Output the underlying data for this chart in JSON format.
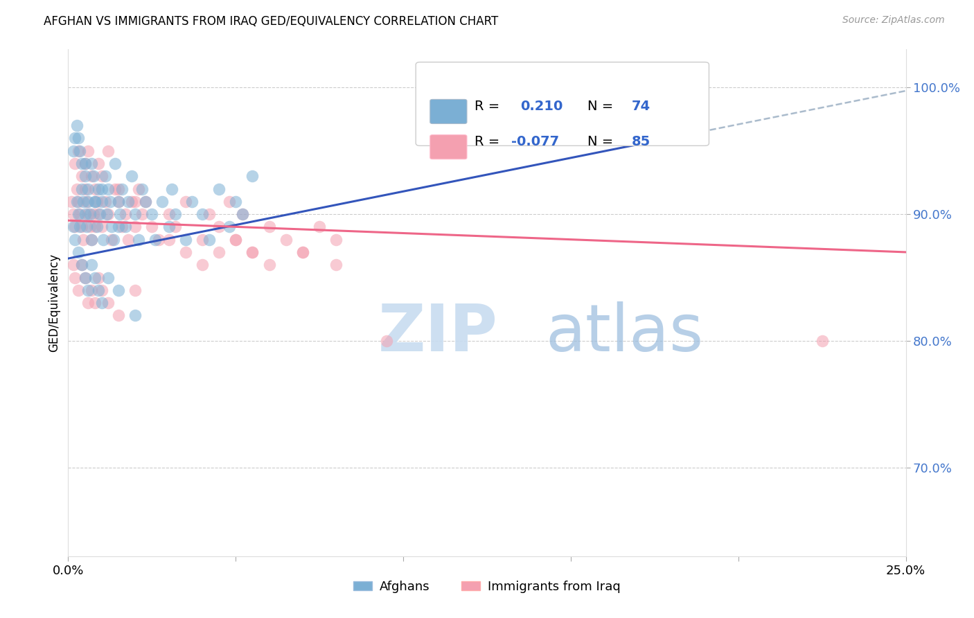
{
  "title": "AFGHAN VS IMMIGRANTS FROM IRAQ GED/EQUIVALENCY CORRELATION CHART",
  "source": "Source: ZipAtlas.com",
  "ylabel": "GED/Equivalency",
  "xmin": 0.0,
  "xmax": 25.0,
  "ymin": 63.0,
  "ymax": 103.0,
  "yticks": [
    70.0,
    80.0,
    90.0,
    100.0
  ],
  "blue_color": "#7BAFD4",
  "pink_color": "#F4A0B0",
  "trend_blue": "#3355BB",
  "trend_pink": "#EE6688",
  "trend_dash_color": "#AABBCC",
  "background_color": "#FFFFFF",
  "blue_scatter_x": [
    0.15,
    0.2,
    0.25,
    0.3,
    0.35,
    0.4,
    0.45,
    0.5,
    0.5,
    0.55,
    0.6,
    0.65,
    0.7,
    0.75,
    0.8,
    0.85,
    0.9,
    0.95,
    1.0,
    1.05,
    1.1,
    1.15,
    1.2,
    1.25,
    1.3,
    1.35,
    1.4,
    1.5,
    1.55,
    1.6,
    1.7,
    1.8,
    1.9,
    2.0,
    2.1,
    2.2,
    2.3,
    2.5,
    2.6,
    2.8,
    3.0,
    3.1,
    3.2,
    3.5,
    3.7,
    4.0,
    4.2,
    4.5,
    4.8,
    5.0,
    5.2,
    5.5,
    0.3,
    0.4,
    0.5,
    0.6,
    0.7,
    0.8,
    0.9,
    1.0,
    1.2,
    1.5,
    2.0,
    0.15,
    0.2,
    0.25,
    0.3,
    0.35,
    0.4,
    0.5,
    0.6,
    0.7,
    0.8,
    1.0,
    1.5
  ],
  "blue_scatter_y": [
    89,
    88,
    91,
    90,
    89,
    92,
    91,
    90,
    94,
    89,
    91,
    90,
    88,
    93,
    91,
    89,
    92,
    90,
    91,
    88,
    93,
    90,
    92,
    91,
    89,
    88,
    94,
    91,
    90,
    92,
    89,
    91,
    93,
    90,
    88,
    92,
    91,
    90,
    88,
    91,
    89,
    92,
    90,
    88,
    91,
    90,
    88,
    92,
    89,
    91,
    90,
    93,
    87,
    86,
    85,
    84,
    86,
    85,
    84,
    83,
    85,
    84,
    82,
    95,
    96,
    97,
    96,
    95,
    94,
    93,
    92,
    94,
    91,
    92,
    89
  ],
  "pink_scatter_x": [
    0.1,
    0.15,
    0.2,
    0.25,
    0.3,
    0.35,
    0.4,
    0.45,
    0.5,
    0.55,
    0.6,
    0.65,
    0.7,
    0.75,
    0.8,
    0.85,
    0.9,
    1.0,
    1.1,
    1.2,
    1.3,
    1.4,
    1.5,
    1.6,
    1.7,
    1.8,
    1.9,
    2.0,
    2.1,
    2.2,
    2.3,
    2.5,
    2.7,
    3.0,
    3.2,
    3.5,
    4.0,
    4.2,
    4.5,
    4.8,
    5.0,
    5.2,
    5.5,
    6.0,
    6.5,
    7.0,
    7.5,
    8.0,
    0.15,
    0.2,
    0.3,
    0.4,
    0.5,
    0.6,
    0.7,
    0.8,
    0.9,
    1.0,
    1.2,
    1.5,
    2.0,
    0.2,
    0.3,
    0.4,
    0.5,
    0.6,
    0.7,
    0.8,
    0.9,
    1.0,
    1.2,
    1.5,
    2.0,
    3.0,
    3.5,
    4.0,
    4.5,
    5.0,
    5.5,
    6.0,
    7.0,
    8.0,
    9.5,
    22.5
  ],
  "pink_scatter_y": [
    91,
    90,
    89,
    92,
    91,
    90,
    89,
    88,
    92,
    91,
    90,
    89,
    88,
    90,
    89,
    91,
    90,
    89,
    91,
    90,
    88,
    92,
    91,
    89,
    90,
    88,
    91,
    89,
    92,
    90,
    91,
    89,
    88,
    90,
    89,
    91,
    88,
    90,
    89,
    91,
    88,
    90,
    87,
    89,
    88,
    87,
    89,
    88,
    86,
    85,
    84,
    86,
    85,
    83,
    84,
    83,
    85,
    84,
    83,
    82,
    84,
    94,
    95,
    93,
    94,
    95,
    93,
    92,
    94,
    93,
    95,
    92,
    91,
    88,
    87,
    86,
    87,
    88,
    87,
    86,
    87,
    86,
    80,
    80
  ],
  "blue_trend_x0": 0.0,
  "blue_trend_y0": 86.5,
  "blue_trend_x1": 17.0,
  "blue_trend_y1": 95.5,
  "blue_dash_x0": 17.0,
  "blue_dash_y0": 95.5,
  "blue_dash_x1": 25.5,
  "blue_dash_y1": 100.0,
  "pink_trend_x0": 0.0,
  "pink_trend_y0": 89.5,
  "pink_trend_x1": 25.0,
  "pink_trend_y1": 87.0
}
